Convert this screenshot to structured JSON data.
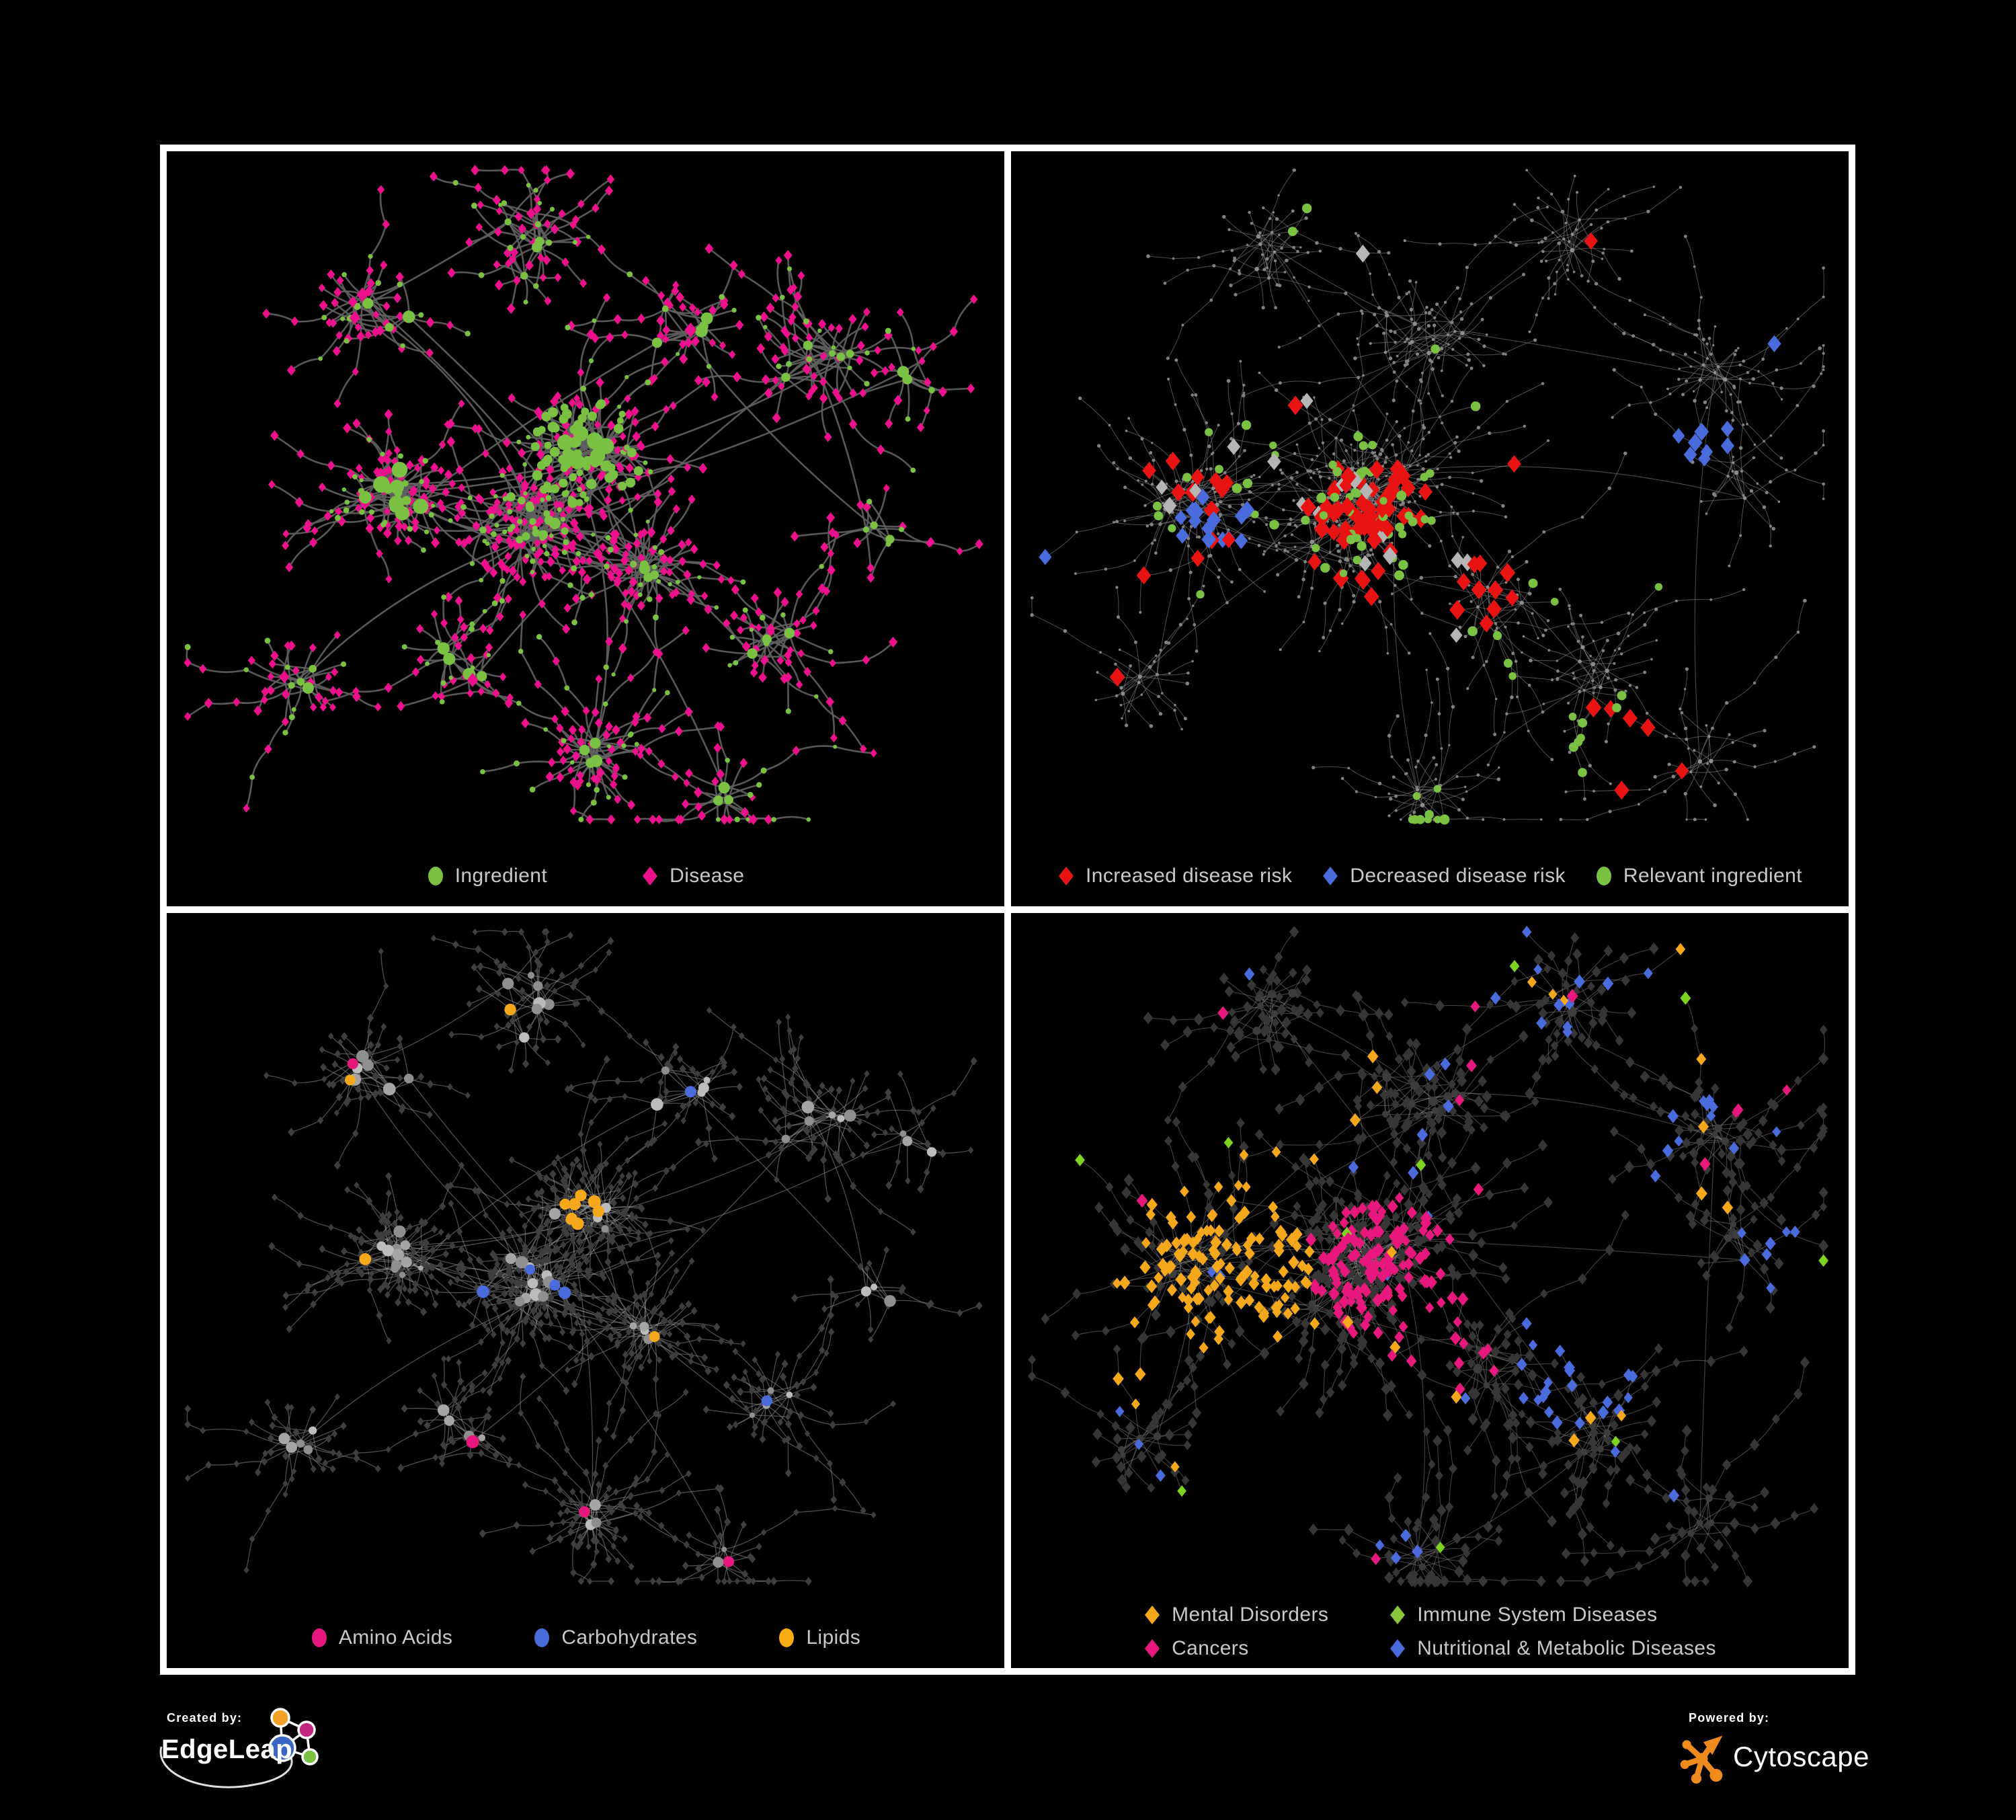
{
  "page": {
    "background": "#000000",
    "frame_color": "#ffffff"
  },
  "branding": {
    "created_by_label": "Created by:",
    "edgeleap_name": "EdgeLeap",
    "powered_by_label": "Powered by:",
    "cytoscape_name": "Cytoscape",
    "edgeleap_logo_colors": {
      "orange": "#f0a126",
      "magenta": "#c2267e",
      "blue": "#3c64c4",
      "green": "#7ac143"
    },
    "cytoscape_logo_color": "#ef8a1d"
  },
  "layouts": [
    {
      "seed": 7,
      "chain": 0.3,
      "chainLen": 3,
      "cross": 0.07,
      "clusters": [
        [
          0.5,
          0.4,
          0.055,
          16,
          6
        ],
        [
          0.42,
          0.5,
          0.07,
          14,
          8
        ],
        [
          0.27,
          0.46,
          0.06,
          12,
          8
        ],
        [
          0.57,
          0.56,
          0.035,
          5,
          11
        ],
        [
          0.5,
          0.8,
          0.035,
          4,
          12
        ],
        [
          0.24,
          0.2,
          0.08,
          8,
          5
        ],
        [
          0.45,
          0.12,
          0.08,
          8,
          5
        ],
        [
          0.63,
          0.23,
          0.06,
          6,
          6
        ],
        [
          0.78,
          0.28,
          0.06,
          6,
          7
        ],
        [
          0.9,
          0.3,
          0.04,
          3,
          6
        ],
        [
          0.17,
          0.7,
          0.06,
          5,
          5
        ],
        [
          0.35,
          0.68,
          0.05,
          5,
          6
        ],
        [
          0.72,
          0.65,
          0.05,
          5,
          7
        ],
        [
          0.85,
          0.5,
          0.04,
          3,
          6
        ],
        [
          0.65,
          0.85,
          0.04,
          3,
          7
        ]
      ]
    },
    {
      "seed": 13,
      "chain": 0.45,
      "chainLen": 4,
      "cross": 0.1,
      "clusters": [
        [
          0.42,
          0.46,
          0.095,
          22,
          8
        ],
        [
          0.22,
          0.46,
          0.065,
          12,
          7
        ],
        [
          0.5,
          0.25,
          0.09,
          10,
          6
        ],
        [
          0.3,
          0.13,
          0.07,
          7,
          5
        ],
        [
          0.67,
          0.12,
          0.06,
          5,
          5
        ],
        [
          0.85,
          0.28,
          0.055,
          5,
          6
        ],
        [
          0.5,
          0.845,
          0.04,
          4,
          11
        ],
        [
          0.7,
          0.68,
          0.06,
          6,
          7
        ],
        [
          0.16,
          0.7,
          0.055,
          5,
          6
        ],
        [
          0.82,
          0.8,
          0.05,
          4,
          6
        ],
        [
          0.88,
          0.42,
          0.05,
          4,
          6
        ],
        [
          0.58,
          0.6,
          0.05,
          5,
          6
        ]
      ]
    }
  ],
  "panels": [
    {
      "id": "ingredient-disease-network",
      "layout": 0,
      "legend": {
        "columns": 1,
        "items": [
          {
            "label": "Ingredient",
            "color": "#7ac143",
            "shape": "ellipse"
          },
          {
            "label": "Disease",
            "color": "#ec108c",
            "shape": "diamond"
          }
        ]
      },
      "style": {
        "paint_seed": 101,
        "curve": 0.18,
        "edge": {
          "color": "#606060",
          "width": 2.6,
          "opacity": 0.92
        },
        "hub": {
          "shape": "circle",
          "colors": [
            "#7ac143"
          ],
          "size": [
            4.5,
            9.5
          ]
        },
        "leaf": {
          "shape": "diamond",
          "colors": [
            "#ec108c"
          ],
          "size": [
            5,
            6.5
          ]
        },
        "paint": [
          {
            "on": "hub",
            "shape": "circle",
            "color": "#7ac143",
            "size": [
              10,
              12.5
            ],
            "regions": [
              [
                0.27,
                0.46,
                0.05,
                0.3
              ],
              [
                0.5,
                0.4,
                0.05,
                0.3
              ]
            ]
          },
          {
            "on": "any",
            "shape": "circle",
            "color": "#7ac143",
            "size": [
              5,
              8
            ],
            "regions": [
              [
                0.5,
                0.4,
                0.07,
                0.55
              ]
            ]
          },
          {
            "on": "hub",
            "shape": "diamond",
            "color": "#ec108c",
            "size": [
              6.5,
              9
            ],
            "scatter": 0.15
          },
          {
            "on": "leaf",
            "shape": "circle",
            "color": "#7ac143",
            "size": [
              3,
              4.5
            ],
            "scatter": 0.24
          }
        ]
      }
    },
    {
      "id": "disease-risk-network",
      "layout": 1,
      "legend": {
        "columns": 1,
        "items": [
          {
            "label": "Increased disease risk",
            "color": "#e81313",
            "shape": "diamond"
          },
          {
            "label": "Decreased disease risk",
            "color": "#4a6bdb",
            "shape": "diamond"
          },
          {
            "label": "Relevant ingredient",
            "color": "#7ac143",
            "shape": "ellipse"
          }
        ]
      },
      "style": {
        "paint_seed": 202,
        "curve": 0.1,
        "edge": {
          "color": "#8a8a8a",
          "width": 1.05,
          "opacity": 0.55
        },
        "hub": {
          "shape": "circle",
          "colors": [
            "#8d8d8d"
          ],
          "size": [
            2,
            3.4
          ]
        },
        "leaf": {
          "shape": "circle",
          "colors": [
            "#828282"
          ],
          "size": [
            1.7,
            2.8
          ]
        },
        "paint": [
          {
            "on": "any",
            "shape": "diamond",
            "color": "#e81313",
            "size": [
              10,
              12
            ],
            "regions": [
              [
                0.43,
                0.5,
                0.09,
                0.28
              ],
              [
                0.55,
                0.6,
                0.08,
                0.18
              ],
              [
                0.22,
                0.46,
                0.07,
                0.1
              ],
              [
                0.72,
                0.79,
                0.06,
                0.3
              ],
              [
                0.63,
                0.43,
                0.035,
                0.5
              ],
              [
                0.32,
                0.35,
                0.03,
                0.5
              ]
            ],
            "scatter": 0.004
          },
          {
            "on": "any",
            "shape": "diamond",
            "color": "#4a6bdb",
            "size": [
              9,
              11
            ],
            "regions": [
              [
                0.24,
                0.49,
                0.05,
                0.32
              ],
              [
                0.825,
                0.375,
                0.035,
                0.9
              ]
            ],
            "scatter": 0.0015
          },
          {
            "on": "any",
            "shape": "diamond",
            "color": "#b5b5b5",
            "size": [
              9,
              11
            ],
            "regions": [
              [
                0.3,
                0.5,
                0.14,
                0.04
              ],
              [
                0.5,
                0.58,
                0.1,
                0.06
              ]
            ],
            "scatter": 0.002
          },
          {
            "on": "any",
            "shape": "circle",
            "color": "#7ac143",
            "size": [
              5.5,
              7.5
            ],
            "regions": [
              [
                0.25,
                0.42,
                0.1,
                0.2
              ],
              [
                0.43,
                0.47,
                0.1,
                0.2
              ],
              [
                0.6,
                0.62,
                0.08,
                0.12
              ],
              [
                0.7,
                0.78,
                0.07,
                0.22
              ],
              [
                0.8,
                0.55,
                0.04,
                0.5
              ],
              [
                0.5,
                0.86,
                0.035,
                0.5
              ]
            ],
            "scatter": 0.007
          }
        ]
      }
    },
    {
      "id": "nutrient-class-network",
      "layout": 0,
      "legend": {
        "columns": 1,
        "items": [
          {
            "label": "Amino Acids",
            "color": "#e6187c",
            "shape": "ellipse"
          },
          {
            "label": "Carbohydrates",
            "color": "#4a6bdb",
            "shape": "ellipse"
          },
          {
            "label": "Lipids",
            "color": "#f9ab13",
            "shape": "ellipse"
          }
        ]
      },
      "style": {
        "paint_seed": 303,
        "curve": 0.1,
        "edge": {
          "color": "#9b9b9b",
          "width": 1.3,
          "opacity": 0.5
        },
        "hub": {
          "shape": "circle",
          "colors": [
            "#8f8f8f",
            "#a5a5a5",
            "#bcbcbc"
          ],
          "size": [
            4,
            9.5
          ]
        },
        "leaf": {
          "shape": "diamond",
          "colors": [
            "#3e3e3e"
          ],
          "size": [
            4,
            5.2
          ]
        },
        "paint": [
          {
            "on": "hub",
            "shape": "circle",
            "color": "#f5a81c",
            "size": [
              7.5,
              10.5
            ],
            "regions": [
              [
                0.5,
                0.4,
                0.09,
                0.55
              ],
              [
                0.42,
                0.2,
                0.08,
                0.3
              ],
              [
                0.62,
                0.47,
                0.1,
                0.12
              ]
            ],
            "scatter": 0.04
          },
          {
            "on": "hub",
            "shape": "circle",
            "color": "#e6187c",
            "size": [
              7.5,
              10
            ],
            "regions": [
              [
                0.5,
                0.76,
                0.2,
                0.16
              ],
              [
                0.1,
                0.5,
                0.08,
                0.3
              ],
              [
                0.76,
                0.4,
                0.1,
                0.08
              ]
            ],
            "scatter": 0.03
          },
          {
            "on": "hub",
            "shape": "circle",
            "color": "#4a6bdb",
            "size": [
              7.5,
              9.5
            ],
            "regions": [
              [
                0.45,
                0.45,
                0.1,
                0.1
              ],
              [
                0.07,
                0.3,
                0.05,
                0.3
              ]
            ],
            "scatter": 0.022
          }
        ]
      }
    },
    {
      "id": "disease-class-network",
      "layout": 1,
      "legend": {
        "columns": 2,
        "items": [
          {
            "label": "Mental Disorders",
            "color": "#f5a81c",
            "shape": "diamond"
          },
          {
            "label": "Immune System Diseases",
            "color": "#8cc63f",
            "shape": "diamond"
          },
          {
            "label": "Cancers",
            "color": "#e6187c",
            "shape": "diamond"
          },
          {
            "label": "Nutritional & Metabolic Diseases",
            "color": "#4a6bdb",
            "shape": "diamond"
          }
        ]
      },
      "style": {
        "paint_seed": 404,
        "curve": 0.1,
        "edge": {
          "color": "#8f8f8f",
          "width": 1.15,
          "opacity": 0.45
        },
        "hub": {
          "shape": "circle",
          "colors": [
            "#3d3d3d"
          ],
          "size": [
            4,
            7
          ]
        },
        "leaf": {
          "shape": "diamond",
          "colors": [
            "#363636"
          ],
          "size": [
            5.5,
            7.5
          ]
        },
        "paint": [
          {
            "on": "any",
            "shape": "diamond",
            "color": "#f5a81c",
            "size": [
              6.5,
              8.5
            ],
            "regions": [
              [
                0.24,
                0.47,
                0.12,
                0.78
              ],
              [
                0.33,
                0.3,
                0.07,
                0.12
              ],
              [
                0.13,
                0.6,
                0.06,
                0.3
              ]
            ],
            "scatter": 0.02
          },
          {
            "on": "any",
            "shape": "diamond",
            "color": "#e6187c",
            "size": [
              6.5,
              8.5
            ],
            "regions": [
              [
                0.45,
                0.47,
                0.1,
                0.45
              ],
              [
                0.52,
                0.56,
                0.08,
                0.28
              ],
              [
                0.88,
                0.22,
                0.05,
                0.65
              ],
              [
                0.56,
                0.33,
                0.06,
                0.14
              ]
            ],
            "scatter": 0.013
          },
          {
            "on": "any",
            "shape": "diamond",
            "color": "#4a6bdb",
            "size": [
              6.5,
              8.5
            ],
            "regions": [
              [
                0.68,
                0.6,
                0.09,
                0.45
              ],
              [
                0.8,
                0.33,
                0.1,
                0.22
              ],
              [
                0.62,
                0.08,
                0.1,
                0.22
              ],
              [
                0.92,
                0.45,
                0.05,
                0.4
              ],
              [
                0.33,
                0.63,
                0.05,
                0.28
              ],
              [
                0.47,
                0.88,
                0.06,
                0.22
              ],
              [
                0.25,
                0.12,
                0.07,
                0.12
              ]
            ],
            "scatter": 0.028
          },
          {
            "on": "any",
            "shape": "diamond",
            "color": "#7ed321",
            "size": [
              6.5,
              8
            ],
            "regions": [
              [
                0.45,
                0.4,
                0.1,
                0.035
              ]
            ],
            "scatter": 0.01
          }
        ]
      }
    }
  ]
}
